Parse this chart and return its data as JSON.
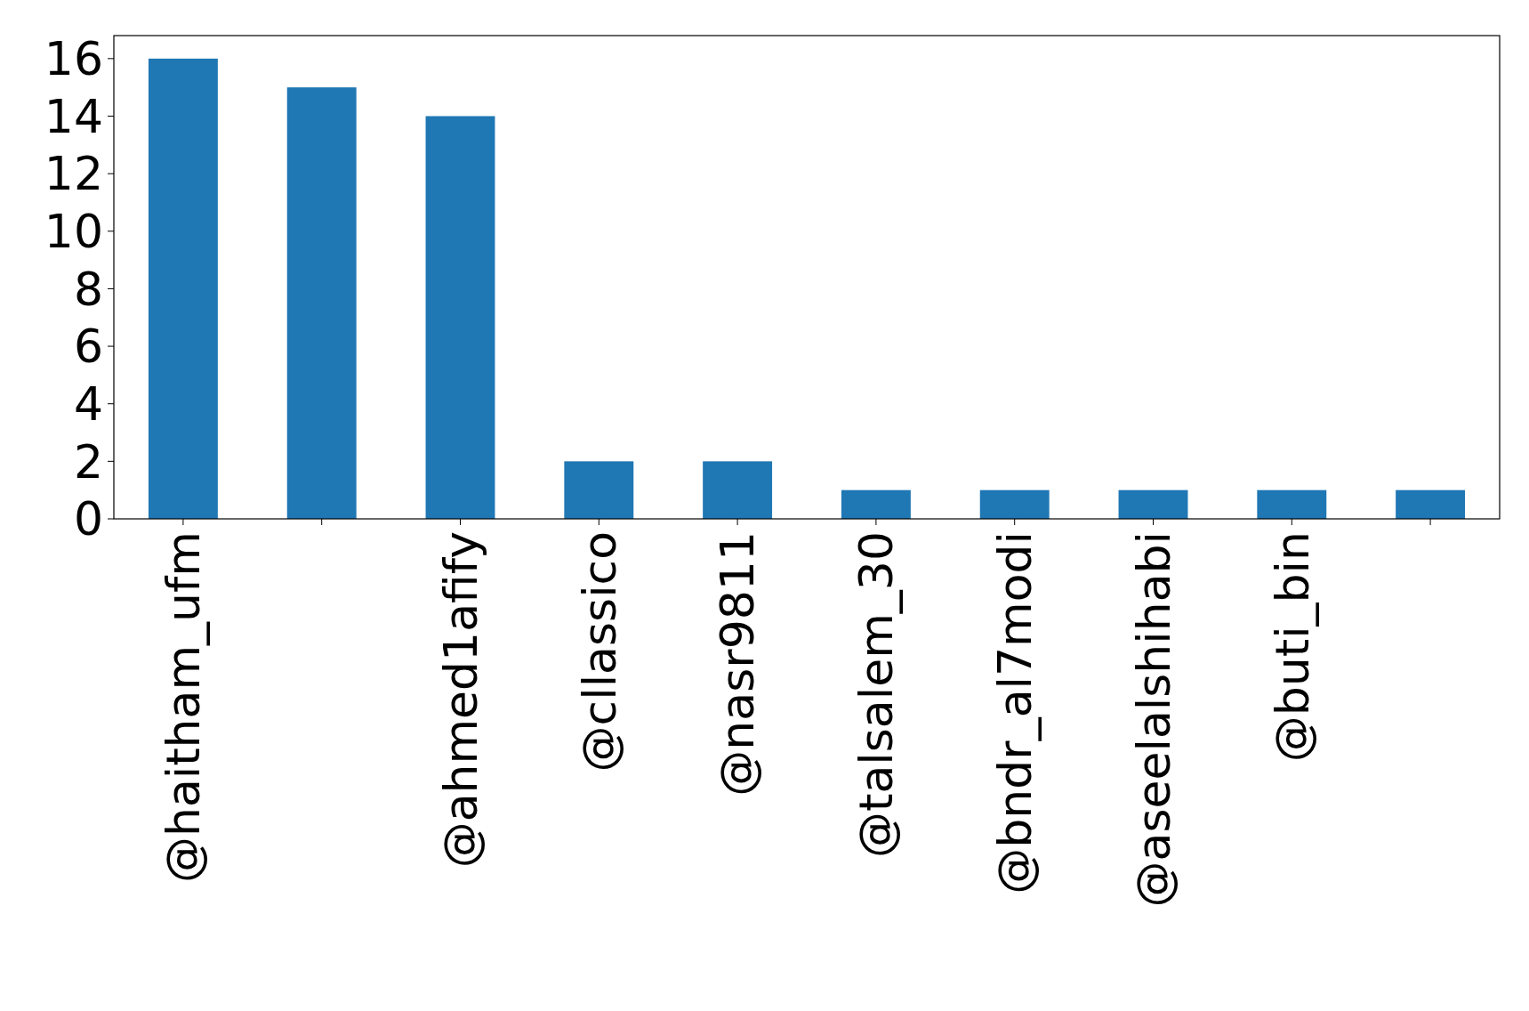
{
  "chart_data": {
    "type": "bar",
    "categories": [
      "@haitham_ufm",
      null,
      "@ahmed1afify",
      "@cllassico",
      "@nasr9811",
      "@talsalem_30",
      "@bndr_al7modi",
      "@aseelalshihabi",
      "@buti_bin",
      null
    ],
    "values": [
      16,
      15,
      14,
      2,
      2,
      1,
      1,
      1,
      1,
      1
    ],
    "color": "#1f77b4",
    "ylim": [
      0,
      16.8
    ],
    "yticks": [
      0,
      2,
      4,
      6,
      8,
      10,
      12,
      14,
      16
    ],
    "grid": false
  }
}
